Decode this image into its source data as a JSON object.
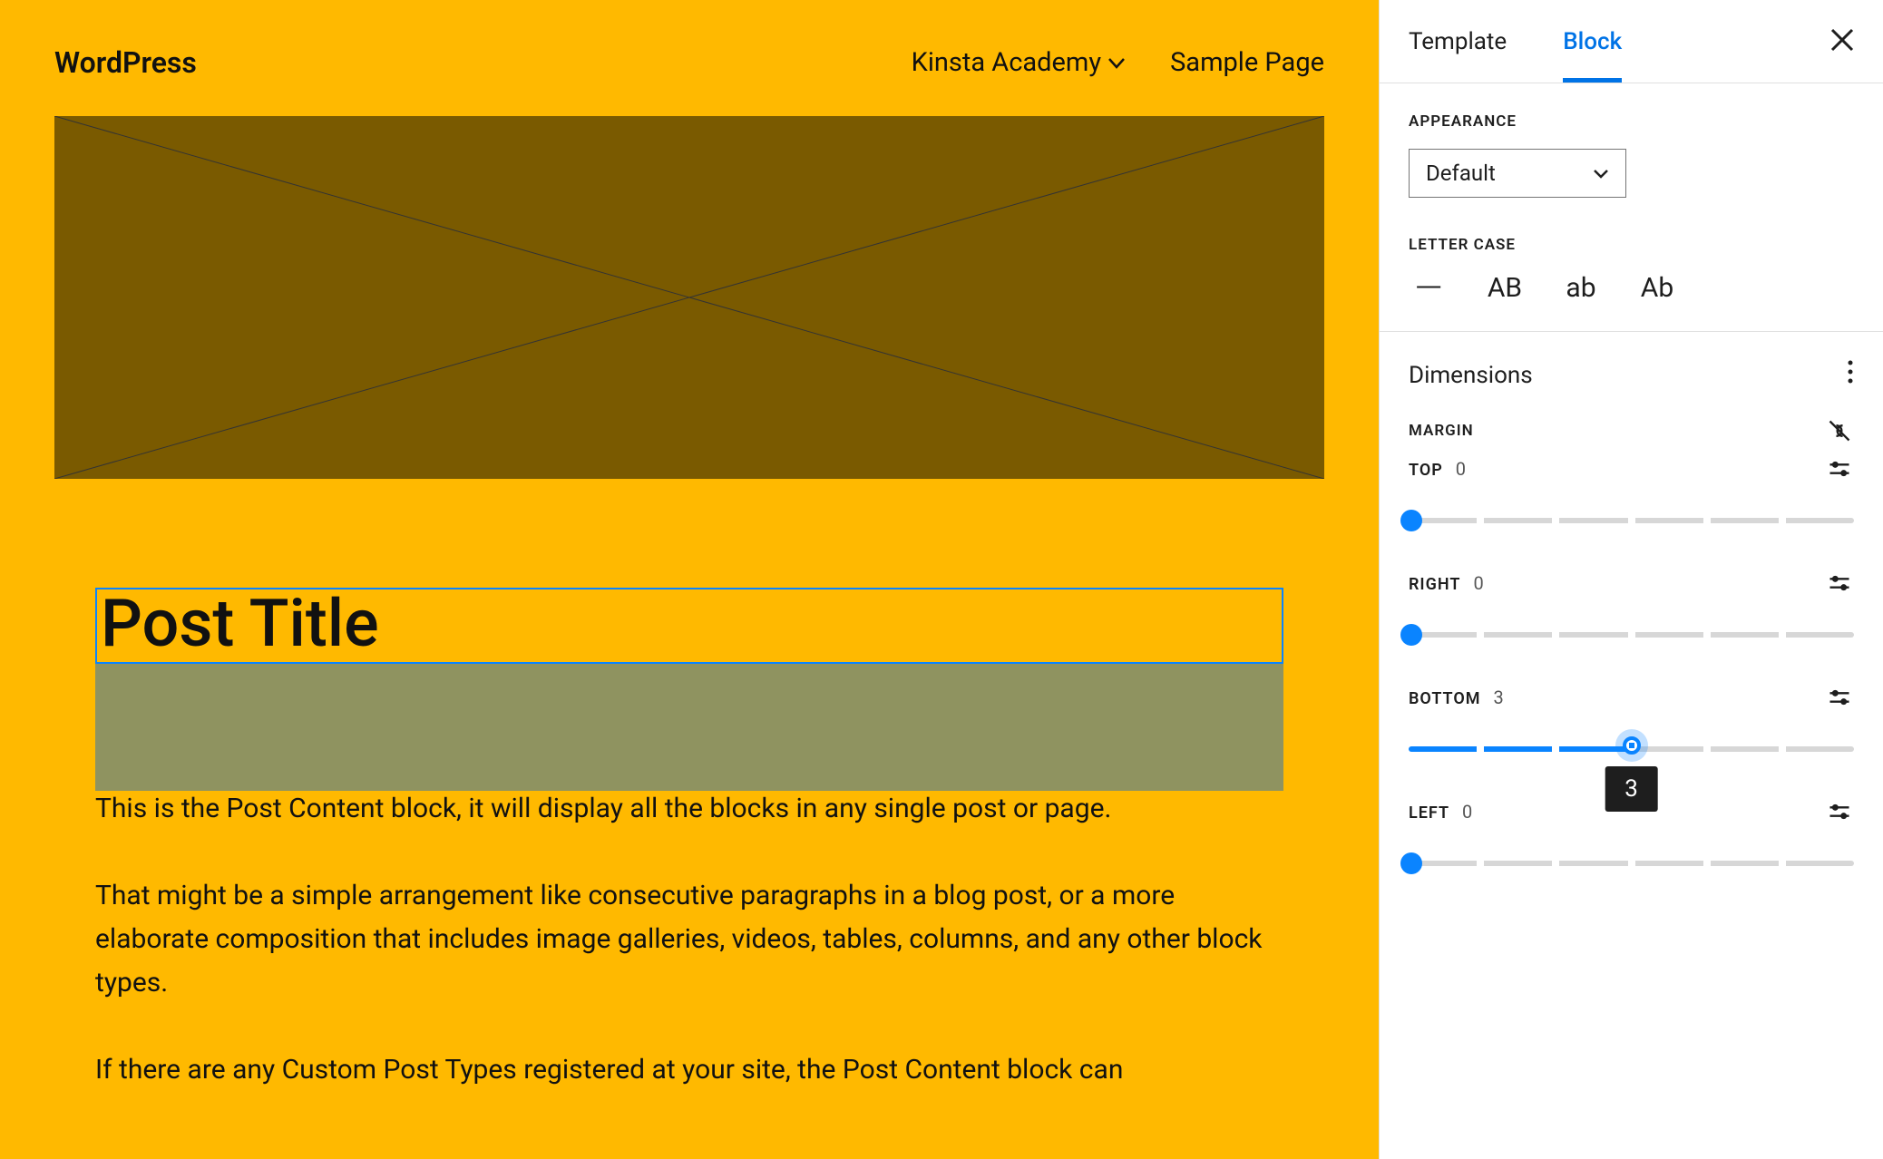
{
  "canvas": {
    "background_color": "#ffb900",
    "site_title": "WordPress",
    "nav": [
      {
        "label": "Kinsta Academy",
        "has_dropdown": true
      },
      {
        "label": "Sample Page",
        "has_dropdown": false
      }
    ],
    "featured_image": {
      "fill": "#7a5a00",
      "stroke": "#333333"
    },
    "post_title": "Post Title",
    "post_title_border": "#0a84ff",
    "excerpt_bg": "#8f9360",
    "paragraphs": [
      "This is the Post Content block, it will display all the blocks in any single post or page.",
      "That might be a simple arrangement like consecutive paragraphs in a blog post, or a more elaborate composition that includes image galleries, videos, tables, columns, and any other block types.",
      "If there are any Custom Post Types registered at your site, the Post Content block can"
    ]
  },
  "sidebar": {
    "tabs": {
      "template": "Template",
      "block": "Block",
      "active": "block"
    },
    "appearance": {
      "label": "APPEARANCE",
      "value": "Default"
    },
    "letter_case": {
      "label": "LETTER CASE",
      "options": [
        "—",
        "AB",
        "ab",
        "Ab"
      ]
    },
    "dimensions": {
      "title": "Dimensions",
      "margin_label": "MARGIN",
      "slider_segments": 6,
      "accent": "#0a84ff",
      "track": "#d7d7d7",
      "sides": [
        {
          "key": "top",
          "label": "TOP",
          "value": 0,
          "focused": false
        },
        {
          "key": "right",
          "label": "RIGHT",
          "value": 0,
          "focused": false
        },
        {
          "key": "bottom",
          "label": "BOTTOM",
          "value": 3,
          "focused": true,
          "tooltip": "3"
        },
        {
          "key": "left",
          "label": "LEFT",
          "value": 0,
          "focused": false
        }
      ]
    }
  }
}
